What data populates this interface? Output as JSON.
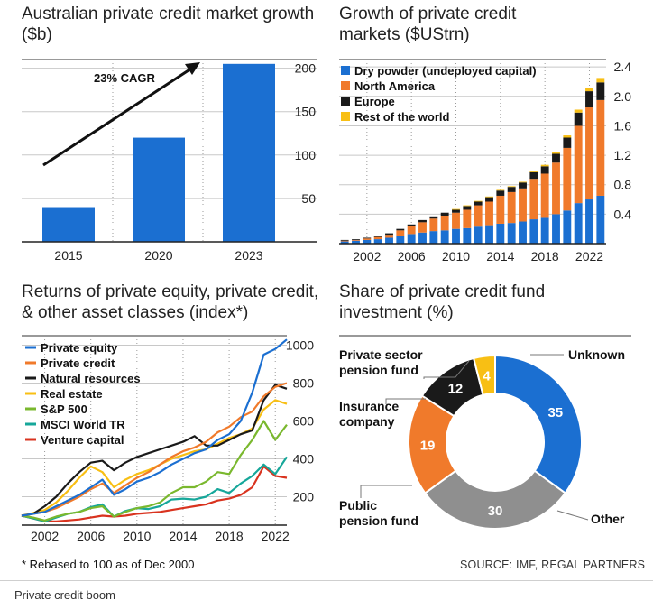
{
  "chart_data": [
    {
      "type": "bar",
      "title": "Australian private credit market growth ($b)",
      "categories": [
        "2015",
        "2020",
        "2023"
      ],
      "values": [
        40,
        120,
        205
      ],
      "ylim": [
        0,
        210
      ],
      "yticks": [
        50,
        100,
        150,
        200
      ],
      "annotation": "23% CAGR",
      "bar_color": "#1b6fd1"
    },
    {
      "type": "bar",
      "title": "Growth of private credit markets ($UStrn)",
      "stacked": true,
      "x": [
        2000,
        2001,
        2002,
        2003,
        2004,
        2005,
        2006,
        2007,
        2008,
        2009,
        2010,
        2011,
        2012,
        2013,
        2014,
        2015,
        2016,
        2017,
        2018,
        2019,
        2020,
        2021,
        2022,
        2023
      ],
      "series": [
        {
          "name": "Dry powder (undeployed capital)",
          "color": "#1b6fd1",
          "values": [
            0.03,
            0.04,
            0.05,
            0.06,
            0.08,
            0.1,
            0.13,
            0.15,
            0.17,
            0.18,
            0.2,
            0.21,
            0.23,
            0.25,
            0.27,
            0.28,
            0.3,
            0.33,
            0.35,
            0.4,
            0.45,
            0.55,
            0.6,
            0.65
          ]
        },
        {
          "name": "North America",
          "color": "#f07a2b",
          "values": [
            0.01,
            0.01,
            0.02,
            0.03,
            0.04,
            0.08,
            0.11,
            0.14,
            0.17,
            0.2,
            0.22,
            0.25,
            0.29,
            0.32,
            0.38,
            0.42,
            0.45,
            0.55,
            0.6,
            0.7,
            0.85,
            1.05,
            1.25,
            1.3
          ]
        },
        {
          "name": "Europe",
          "color": "#1a1a1a",
          "values": [
            0.01,
            0.01,
            0.01,
            0.01,
            0.02,
            0.02,
            0.02,
            0.03,
            0.03,
            0.04,
            0.04,
            0.05,
            0.05,
            0.06,
            0.07,
            0.07,
            0.08,
            0.09,
            0.1,
            0.12,
            0.14,
            0.18,
            0.22,
            0.24
          ]
        },
        {
          "name": "Rest of the world",
          "color": "#f8bf14",
          "values": [
            0.0,
            0.0,
            0.0,
            0.0,
            0.0,
            0.0,
            0.0,
            0.0,
            0.0,
            0.0,
            0.01,
            0.01,
            0.01,
            0.01,
            0.01,
            0.01,
            0.01,
            0.02,
            0.02,
            0.02,
            0.03,
            0.04,
            0.05,
            0.06
          ]
        }
      ],
      "ylim": [
        0,
        2.5
      ],
      "yticks": [
        "0.4",
        "0.8",
        "1.2",
        "1.6",
        "2.0",
        "2.4"
      ],
      "xticks": [
        "2002",
        "2006",
        "2010",
        "2014",
        "2018",
        "2022"
      ]
    },
    {
      "type": "line",
      "title": "Returns of private equity, private credit, & other asset classes (index*)",
      "x": [
        2000,
        2001,
        2002,
        2003,
        2004,
        2005,
        2006,
        2007,
        2008,
        2009,
        2010,
        2011,
        2012,
        2013,
        2014,
        2015,
        2016,
        2017,
        2018,
        2019,
        2020,
        2021,
        2022,
        2023
      ],
      "ylim": [
        50,
        1050
      ],
      "yticks": [
        "200",
        "400",
        "600",
        "800",
        "1000"
      ],
      "xticks": [
        "2002",
        "2006",
        "2010",
        "2014",
        "2018",
        "2022"
      ],
      "series": [
        {
          "name": "Private equity",
          "color": "#1b6fd1",
          "values": [
            100,
            110,
            120,
            150,
            180,
            210,
            250,
            290,
            210,
            240,
            280,
            300,
            330,
            370,
            400,
            430,
            450,
            500,
            530,
            600,
            750,
            950,
            980,
            1030
          ]
        },
        {
          "name": "Private credit",
          "color": "#f07a2b",
          "values": [
            100,
            110,
            120,
            140,
            170,
            200,
            240,
            270,
            220,
            260,
            300,
            330,
            370,
            410,
            440,
            460,
            490,
            540,
            570,
            620,
            650,
            730,
            780,
            800
          ]
        },
        {
          "name": "Natural resources",
          "color": "#1a1a1a",
          "values": [
            100,
            110,
            150,
            200,
            270,
            330,
            380,
            390,
            340,
            380,
            410,
            430,
            450,
            470,
            490,
            520,
            470,
            470,
            500,
            530,
            550,
            710,
            790,
            770
          ]
        },
        {
          "name": "Real estate",
          "color": "#f8bf14",
          "values": [
            100,
            115,
            130,
            170,
            230,
            300,
            360,
            330,
            250,
            290,
            320,
            340,
            370,
            400,
            420,
            440,
            450,
            480,
            510,
            530,
            560,
            660,
            710,
            690
          ]
        },
        {
          "name": "S&P 500",
          "color": "#7ab82e",
          "values": [
            100,
            90,
            75,
            95,
            110,
            120,
            140,
            150,
            95,
            120,
            140,
            150,
            170,
            220,
            250,
            250,
            280,
            330,
            320,
            420,
            500,
            600,
            500,
            580
          ]
        },
        {
          "name": "MSCI World TR",
          "color": "#16a79a",
          "values": [
            100,
            85,
            70,
            90,
            110,
            120,
            145,
            160,
            95,
            125,
            140,
            135,
            150,
            185,
            190,
            185,
            200,
            240,
            220,
            270,
            310,
            370,
            320,
            410
          ]
        },
        {
          "name": "Venture capital",
          "color": "#d9331f",
          "values": [
            100,
            85,
            70,
            70,
            75,
            80,
            90,
            100,
            95,
            100,
            110,
            115,
            120,
            130,
            140,
            150,
            160,
            180,
            190,
            210,
            250,
            360,
            310,
            300
          ]
        }
      ],
      "note": "* Rebased to 100 as of Dec 2000"
    },
    {
      "type": "pie",
      "donut": true,
      "title": "Share of private credit fund investment (%)",
      "slices": [
        {
          "label": "Unknown",
          "value": 35,
          "value_label": "35",
          "color": "#1b6fd1"
        },
        {
          "label": "Other",
          "value": 30,
          "value_label": "30",
          "color": "#8f8f8f"
        },
        {
          "label": "Public pension fund",
          "value": 19,
          "value_label": "19",
          "color": "#f07a2b"
        },
        {
          "label": "Insurance company",
          "value": 12,
          "value_label": "12",
          "color": "#1a1a1a"
        },
        {
          "label": "Private sector pension fund",
          "value": 4,
          "value_label": "4",
          "color": "#f8bf14"
        }
      ]
    }
  ],
  "source": "SOURCE: IMF, REGAL PARTNERS",
  "caption": "Private credit boom"
}
